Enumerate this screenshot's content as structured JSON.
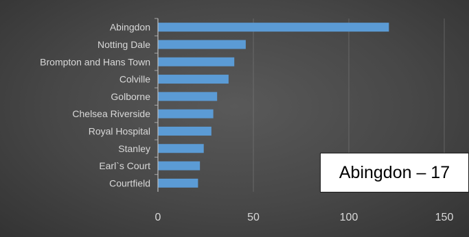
{
  "chart_data": {
    "type": "bar",
    "orientation": "horizontal",
    "categories": [
      "Abingdon",
      "Notting Dale",
      "Brompton and Hans Town",
      "Colville",
      "Golborne",
      "Chelsea Riverside",
      "Royal Hospital",
      "Stanley",
      "Earl`s Court",
      "Courtfield"
    ],
    "values": [
      121,
      46,
      40,
      37,
      31,
      29,
      28,
      24,
      22,
      21
    ],
    "xlim": [
      0,
      160
    ],
    "xticks": [
      0,
      50,
      100,
      150
    ],
    "grid": true,
    "legend": "none",
    "bar_color": "#5b9bd5",
    "text_color": "#d9d9d9",
    "grid_color": "#7f7f7f"
  },
  "callout": {
    "text": "Abingdon – 17"
  }
}
